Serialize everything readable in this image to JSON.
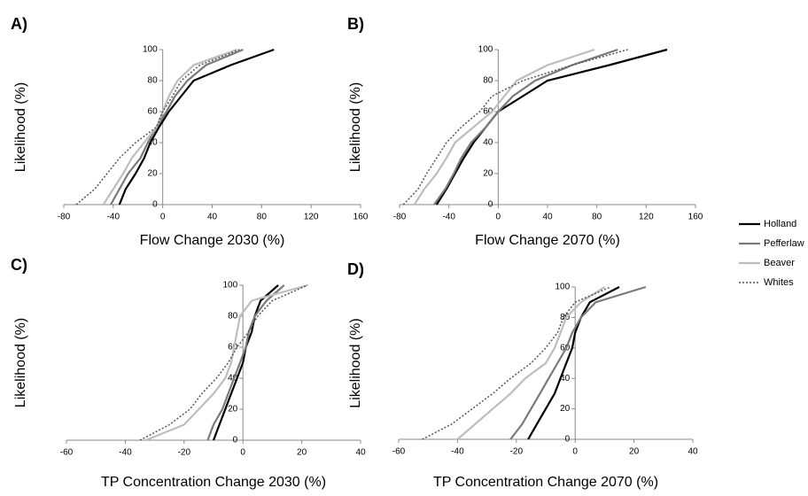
{
  "chart_data": [
    {
      "type": "line",
      "panel": "A)",
      "xlabel": "Flow Change 2030 (%)",
      "ylabel": "Likelihood (%)",
      "xlim": [
        -80,
        160
      ],
      "xticks": [
        -80,
        -40,
        0,
        40,
        80,
        120,
        160
      ],
      "ylim": [
        0,
        100
      ],
      "yticks": [
        0,
        20,
        40,
        60,
        80,
        100
      ],
      "series": [
        {
          "name": "Holland",
          "color": "#000000",
          "style": "solid",
          "x": [
            -35,
            -30,
            -22,
            -15,
            -10,
            -3,
            5,
            15,
            25,
            55,
            90
          ],
          "values": [
            0,
            10,
            20,
            30,
            40,
            50,
            60,
            70,
            80,
            90,
            100
          ]
        },
        {
          "name": "Pefferlaw",
          "color": "#7a7a7a",
          "style": "solid",
          "x": [
            -42,
            -35,
            -28,
            -18,
            -12,
            -5,
            3,
            10,
            20,
            35,
            65
          ],
          "values": [
            0,
            10,
            20,
            30,
            40,
            50,
            60,
            70,
            80,
            90,
            100
          ]
        },
        {
          "name": "Beaver",
          "color": "#bdbdbd",
          "style": "solid",
          "x": [
            -48,
            -40,
            -32,
            -25,
            -15,
            -5,
            0,
            5,
            12,
            25,
            60
          ],
          "values": [
            0,
            10,
            20,
            30,
            40,
            50,
            60,
            70,
            80,
            90,
            100
          ]
        },
        {
          "name": "Whites",
          "color": "#555555",
          "style": "dotted",
          "x": [
            -70,
            -55,
            -45,
            -35,
            -22,
            -5,
            0,
            8,
            15,
            30,
            62
          ],
          "values": [
            0,
            10,
            20,
            30,
            40,
            50,
            60,
            70,
            80,
            90,
            100
          ]
        }
      ]
    },
    {
      "type": "line",
      "panel": "B)",
      "xlabel": "Flow Change 2070 (%)",
      "ylabel": "Likelihood (%)",
      "xlim": [
        -80,
        160
      ],
      "xticks": [
        -80,
        -40,
        0,
        40,
        80,
        120,
        160
      ],
      "ylim": [
        0,
        100
      ],
      "yticks": [
        0,
        20,
        40,
        60,
        80,
        100
      ],
      "series": [
        {
          "name": "Holland",
          "color": "#000000",
          "style": "solid",
          "x": [
            -50,
            -42,
            -35,
            -28,
            -20,
            -10,
            0,
            20,
            40,
            90,
            137
          ],
          "values": [
            0,
            10,
            20,
            30,
            40,
            50,
            60,
            70,
            80,
            90,
            100
          ]
        },
        {
          "name": "Pefferlaw",
          "color": "#7a7a7a",
          "style": "solid",
          "x": [
            -52,
            -43,
            -36,
            -30,
            -22,
            -10,
            0,
            12,
            30,
            60,
            97
          ],
          "values": [
            0,
            10,
            20,
            30,
            40,
            50,
            60,
            70,
            80,
            90,
            100
          ]
        },
        {
          "name": "Beaver",
          "color": "#bdbdbd",
          "style": "solid",
          "x": [
            -68,
            -60,
            -50,
            -42,
            -35,
            -20,
            -5,
            5,
            15,
            40,
            78
          ],
          "values": [
            0,
            10,
            20,
            30,
            40,
            50,
            60,
            70,
            80,
            90,
            100
          ]
        },
        {
          "name": "Whites",
          "color": "#555555",
          "style": "dotted",
          "x": [
            -77,
            -65,
            -58,
            -50,
            -42,
            -30,
            -15,
            -5,
            20,
            60,
            105
          ],
          "values": [
            0,
            10,
            20,
            30,
            40,
            50,
            60,
            70,
            80,
            90,
            100
          ]
        }
      ]
    },
    {
      "type": "line",
      "panel": "C)",
      "xlabel": "TP Concentration Change 2030 (%)",
      "ylabel": "Likelihood (%)",
      "xlim": [
        -60,
        40
      ],
      "xticks": [
        -60,
        -40,
        -20,
        0,
        20,
        40
      ],
      "ylim": [
        0,
        100
      ],
      "yticks": [
        0,
        20,
        40,
        60,
        80,
        100
      ],
      "series": [
        {
          "name": "Holland",
          "color": "#000000",
          "style": "solid",
          "x": [
            -10,
            -8,
            -6,
            -4,
            -2,
            0,
            1,
            3,
            4,
            6,
            12
          ],
          "values": [
            0,
            10,
            20,
            30,
            40,
            50,
            60,
            70,
            80,
            90,
            100
          ]
        },
        {
          "name": "Pefferlaw",
          "color": "#7a7a7a",
          "style": "solid",
          "x": [
            -12,
            -10,
            -7,
            -5,
            -3,
            -1,
            1,
            2,
            4,
            8,
            14
          ],
          "values": [
            0,
            10,
            20,
            30,
            40,
            50,
            60,
            70,
            80,
            90,
            100
          ]
        },
        {
          "name": "Beaver",
          "color": "#bdbdbd",
          "style": "solid",
          "x": [
            -33,
            -20,
            -15,
            -10,
            -6,
            -4,
            -3,
            -2,
            -1,
            3,
            22
          ],
          "values": [
            0,
            10,
            20,
            30,
            40,
            50,
            60,
            70,
            80,
            90,
            100
          ]
        },
        {
          "name": "Whites",
          "color": "#555555",
          "style": "dotted",
          "x": [
            -35,
            -25,
            -18,
            -14,
            -9,
            -5,
            -2,
            2,
            5,
            10,
            22
          ],
          "values": [
            0,
            10,
            20,
            30,
            40,
            50,
            60,
            70,
            80,
            90,
            100
          ]
        }
      ]
    },
    {
      "type": "line",
      "panel": "D)",
      "xlabel": "TP Concentration Change 2070 (%)",
      "ylabel": "Likelihood (%)",
      "xlim": [
        -60,
        40
      ],
      "xticks": [
        -60,
        -40,
        -20,
        0,
        20,
        40
      ],
      "ylim": [
        0,
        100
      ],
      "yticks": [
        0,
        20,
        40,
        60,
        80,
        100
      ],
      "series": [
        {
          "name": "Holland",
          "color": "#000000",
          "style": "solid",
          "x": [
            -16,
            -13,
            -10,
            -7,
            -5,
            -3,
            -1,
            0,
            2,
            5,
            15
          ],
          "values": [
            0,
            10,
            20,
            30,
            40,
            50,
            60,
            70,
            80,
            90,
            100
          ]
        },
        {
          "name": "Pefferlaw",
          "color": "#7a7a7a",
          "style": "solid",
          "x": [
            -22,
            -18,
            -15,
            -12,
            -9,
            -6,
            -3,
            -1,
            2,
            7,
            24
          ],
          "values": [
            0,
            10,
            20,
            30,
            40,
            50,
            60,
            70,
            80,
            90,
            100
          ]
        },
        {
          "name": "Beaver",
          "color": "#bdbdbd",
          "style": "solid",
          "x": [
            -40,
            -34,
            -28,
            -22,
            -17,
            -10,
            -7,
            -5,
            -3,
            2,
            10
          ],
          "values": [
            0,
            10,
            20,
            30,
            40,
            50,
            60,
            70,
            80,
            90,
            100
          ]
        },
        {
          "name": "Whites",
          "color": "#555555",
          "style": "dotted",
          "x": [
            -52,
            -42,
            -35,
            -28,
            -22,
            -15,
            -10,
            -6,
            -4,
            0,
            12
          ],
          "values": [
            0,
            10,
            20,
            30,
            40,
            50,
            60,
            70,
            80,
            90,
            100
          ]
        }
      ]
    }
  ]
}
